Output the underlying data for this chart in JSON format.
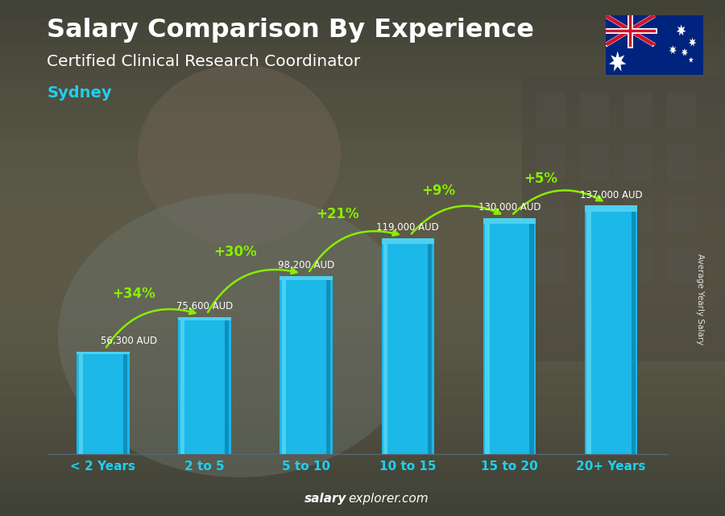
{
  "categories": [
    "< 2 Years",
    "2 to 5",
    "5 to 10",
    "10 to 15",
    "15 to 20",
    "20+ Years"
  ],
  "values": [
    56300,
    75600,
    98200,
    119000,
    130000,
    137000
  ],
  "value_labels": [
    "56,300 AUD",
    "75,600 AUD",
    "98,200 AUD",
    "119,000 AUD",
    "130,000 AUD",
    "137,000 AUD"
  ],
  "pct_labels": [
    "+34%",
    "+30%",
    "+21%",
    "+9%",
    "+5%"
  ],
  "bar_color_main": "#1BB8E8",
  "bar_color_light": "#4DD0F0",
  "bar_color_dark": "#0F8FBB",
  "title_line1": "Salary Comparison By Experience",
  "title_line2": "Certified Clinical Research Coordinator",
  "city": "Sydney",
  "ylabel_rotated": "Average Yearly Salary",
  "footer_bold": "salary",
  "footer_normal": "explorer.com",
  "title_color": "#ffffff",
  "subtitle_color": "#ffffff",
  "city_color": "#1FCFEF",
  "pct_color": "#88EE00",
  "value_label_color": "#ffffff",
  "xtick_color": "#1FCFEF",
  "ylim_max": 165000,
  "bg_color_top": "#8a8a7a",
  "bg_color_bottom": "#5a5040"
}
